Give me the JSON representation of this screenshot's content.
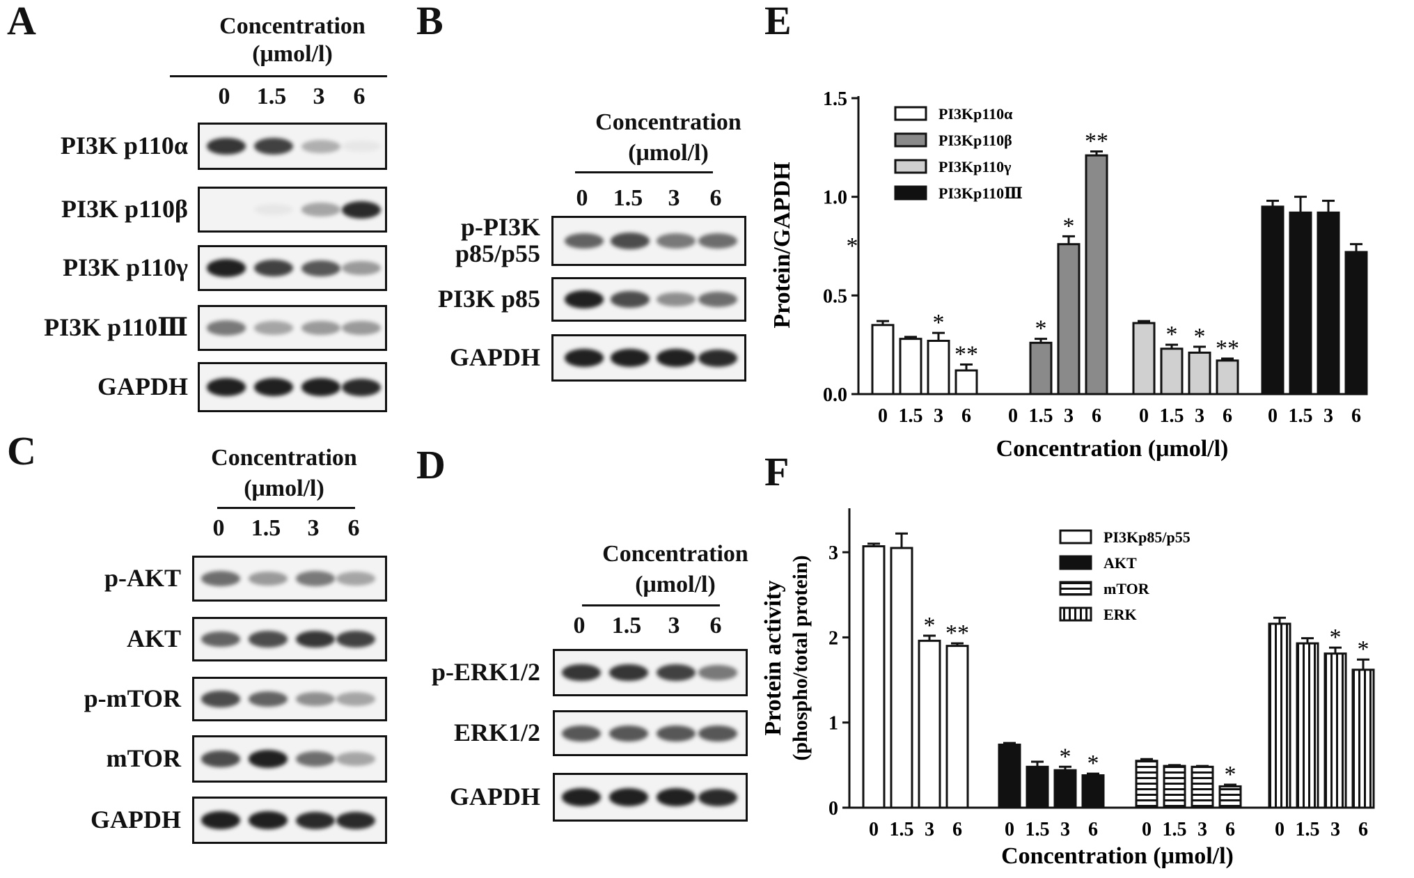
{
  "panels": {
    "A": {
      "label": "A",
      "conc_line1": "Concentration",
      "conc_line2": "(μmol/l)",
      "lanes": [
        "0",
        "1.5",
        "3",
        "6"
      ],
      "rows": [
        {
          "name": "PI3K p110α",
          "intensity": [
            0.85,
            0.8,
            0.3,
            0.05
          ]
        },
        {
          "name": "PI3K p110β",
          "intensity": [
            0.0,
            0.05,
            0.35,
            0.9
          ]
        },
        {
          "name": "PI3K p110γ",
          "intensity": [
            0.95,
            0.8,
            0.7,
            0.4
          ]
        },
        {
          "name": "PI3K p110Ⅲ",
          "intensity": [
            0.55,
            0.35,
            0.4,
            0.4
          ]
        },
        {
          "name": "GAPDH",
          "intensity": [
            0.95,
            0.95,
            0.95,
            0.9
          ]
        }
      ]
    },
    "B": {
      "label": "B",
      "conc_line1": "Concentration",
      "conc_line2": "(μmol/l)",
      "lanes": [
        "0",
        "1.5",
        "3",
        "6"
      ],
      "rows": [
        {
          "name": "p-PI3K\np85/p55",
          "intensity": [
            0.65,
            0.75,
            0.55,
            0.6
          ]
        },
        {
          "name": "PI3K p85",
          "intensity": [
            0.95,
            0.75,
            0.45,
            0.6
          ]
        },
        {
          "name": "GAPDH",
          "intensity": [
            0.95,
            0.95,
            0.95,
            0.9
          ]
        }
      ]
    },
    "C": {
      "label": "C",
      "conc_line1": "Concentration",
      "conc_line2": "(μmol/l)",
      "lanes": [
        "0",
        "1.5",
        "3",
        "6"
      ],
      "rows": [
        {
          "name": "p-AKT",
          "intensity": [
            0.6,
            0.4,
            0.55,
            0.35
          ]
        },
        {
          "name": "AKT",
          "intensity": [
            0.65,
            0.75,
            0.85,
            0.8
          ]
        },
        {
          "name": "p-mTOR",
          "intensity": [
            0.75,
            0.65,
            0.45,
            0.35
          ]
        },
        {
          "name": "mTOR",
          "intensity": [
            0.75,
            0.95,
            0.6,
            0.35
          ]
        },
        {
          "name": "GAPDH",
          "intensity": [
            0.95,
            0.95,
            0.9,
            0.9
          ]
        }
      ]
    },
    "D": {
      "label": "D",
      "conc_line1": "Concentration",
      "conc_line2": "(μmol/l)",
      "lanes": [
        "0",
        "1.5",
        "3",
        "6"
      ],
      "rows": [
        {
          "name": "p-ERK1/2",
          "intensity": [
            0.85,
            0.85,
            0.8,
            0.55
          ]
        },
        {
          "name": "ERK1/2",
          "intensity": [
            0.7,
            0.7,
            0.7,
            0.7
          ]
        },
        {
          "name": "GAPDH",
          "intensity": [
            0.95,
            0.95,
            0.95,
            0.9
          ]
        }
      ]
    }
  },
  "chart_data": [
    {
      "panel": "E",
      "type": "bar",
      "ylabel": "Protein/GAPDH",
      "xlabel": "Concentration (μmol/l)",
      "ylim": [
        0,
        1.5
      ],
      "yticks": [
        "0.0",
        "0.5",
        "1.0",
        "1.5"
      ],
      "categories": [
        "0",
        "1.5",
        "3",
        "6"
      ],
      "legend_position": "top-left",
      "stray_mark": "*",
      "series": [
        {
          "name": "PI3Kp110α",
          "fill": "#ffffff",
          "pattern": "none",
          "values": [
            0.35,
            0.28,
            0.27,
            0.12
          ],
          "errors": [
            0.02,
            0.01,
            0.04,
            0.03
          ],
          "sig": [
            "",
            "",
            "*",
            "**"
          ]
        },
        {
          "name": "PI3Kp110β",
          "fill": "#8a8a8a",
          "pattern": "none",
          "values": [
            0.0,
            0.26,
            0.76,
            1.21
          ],
          "errors": [
            0.0,
            0.02,
            0.04,
            0.02
          ],
          "sig": [
            "",
            "*",
            "*",
            "**"
          ]
        },
        {
          "name": "PI3Kp110γ",
          "fill": "#d0d0d0",
          "pattern": "none",
          "values": [
            0.36,
            0.23,
            0.21,
            0.17
          ],
          "errors": [
            0.01,
            0.02,
            0.03,
            0.01
          ],
          "sig": [
            "",
            "*",
            "*",
            "**"
          ]
        },
        {
          "name": "PI3Kp110Ⅲ",
          "fill": "#111111",
          "pattern": "none",
          "values": [
            0.95,
            0.92,
            0.92,
            0.72
          ],
          "errors": [
            0.03,
            0.08,
            0.06,
            0.04
          ],
          "sig": [
            "",
            "",
            "",
            ""
          ]
        }
      ]
    },
    {
      "panel": "F",
      "type": "bar",
      "ylabel": "Protein activity",
      "ylabel2": "(phospho/total protein)",
      "xlabel": "Concentration (μmol/l)",
      "ylim": [
        0,
        3.5
      ],
      "yticks": [
        "0",
        "1",
        "2",
        "3"
      ],
      "categories": [
        "0",
        "1.5",
        "3",
        "6"
      ],
      "legend_position": "top-center",
      "series": [
        {
          "name": "PI3Kp85/p55",
          "fill": "#ffffff",
          "pattern": "none",
          "values": [
            3.07,
            3.05,
            1.96,
            1.9
          ],
          "errors": [
            0.03,
            0.17,
            0.06,
            0.03
          ],
          "sig": [
            "",
            "",
            "*",
            "**"
          ]
        },
        {
          "name": "AKT",
          "fill": "#111111",
          "pattern": "none",
          "values": [
            0.74,
            0.48,
            0.44,
            0.38
          ],
          "errors": [
            0.02,
            0.06,
            0.04,
            0.02
          ],
          "sig": [
            "",
            "",
            "*",
            "*"
          ]
        },
        {
          "name": "mTOR",
          "fill": "#ffffff",
          "pattern": "hstripe",
          "values": [
            0.55,
            0.49,
            0.48,
            0.25
          ],
          "errors": [
            0.02,
            0.01,
            0.01,
            0.02
          ],
          "sig": [
            "",
            "",
            "",
            "*"
          ]
        },
        {
          "name": "ERK",
          "fill": "#ffffff",
          "pattern": "vstripe",
          "values": [
            2.16,
            1.93,
            1.81,
            1.62
          ],
          "errors": [
            0.07,
            0.06,
            0.07,
            0.12
          ],
          "sig": [
            "",
            "",
            "*",
            "*"
          ]
        }
      ]
    }
  ],
  "panel_labels": {
    "E": "E",
    "F": "F"
  }
}
